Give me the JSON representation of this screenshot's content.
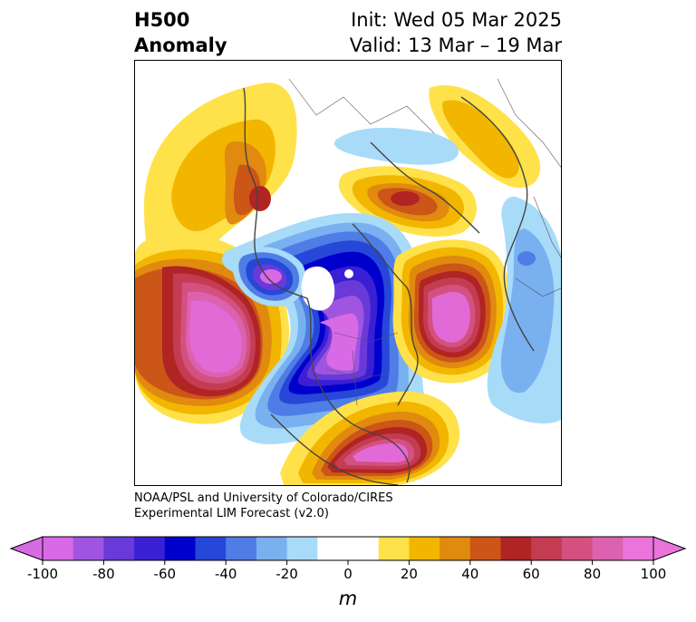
{
  "title": {
    "left_line1": "H500",
    "left_line2": "Anomaly",
    "init": "Init: Wed 05 Mar 2025",
    "valid": "Valid: 13 Mar – 19 Mar"
  },
  "credits": {
    "line1": "NOAA/PSL and University of Colorado/CIRES",
    "line2": "Experimental LIM Forecast (v2.0)"
  },
  "colorbar": {
    "unit": "m",
    "ticks": [
      -100,
      -80,
      -60,
      -40,
      -20,
      0,
      20,
      40,
      60,
      80,
      100
    ],
    "bins": [
      {
        "from": -100,
        "to": -90,
        "color": "#d86ae6"
      },
      {
        "from": -90,
        "to": -80,
        "color": "#a055e0"
      },
      {
        "from": -80,
        "to": -70,
        "color": "#6a3ad8"
      },
      {
        "from": -70,
        "to": -60,
        "color": "#3b1fd4"
      },
      {
        "from": -60,
        "to": -50,
        "color": "#0000cc"
      },
      {
        "from": -50,
        "to": -40,
        "color": "#2747d8"
      },
      {
        "from": -40,
        "to": -30,
        "color": "#4f7de6"
      },
      {
        "from": -30,
        "to": -20,
        "color": "#78b0f0"
      },
      {
        "from": -20,
        "to": -10,
        "color": "#a8dbf8"
      },
      {
        "from": -10,
        "to": 10,
        "color": "#ffffff"
      },
      {
        "from": 10,
        "to": 20,
        "color": "#ffe14a"
      },
      {
        "from": 20,
        "to": 30,
        "color": "#f2b600"
      },
      {
        "from": 30,
        "to": 40,
        "color": "#e08a10"
      },
      {
        "from": 40,
        "to": 50,
        "color": "#cc5518"
      },
      {
        "from": 50,
        "to": 60,
        "color": "#b02424"
      },
      {
        "from": 60,
        "to": 70,
        "color": "#c33c52"
      },
      {
        "from": 70,
        "to": 80,
        "color": "#d4507e"
      },
      {
        "from": 80,
        "to": 90,
        "color": "#dc62b0"
      },
      {
        "from": 90,
        "to": 100,
        "color": "#ea74da"
      }
    ],
    "under_color": "#d86ae6",
    "over_color": "#ea74da"
  },
  "map": {
    "projection": "polar stereographic, North Pole",
    "field": "500 hPa geopotential height anomaly",
    "features": [
      {
        "kind": "positive",
        "level": 100,
        "color": "#e26ad6"
      },
      {
        "kind": "negative",
        "level": -100,
        "color": "#d86ae6"
      }
    ],
    "coastline_color": "#444444",
    "border_color": "#555555"
  }
}
